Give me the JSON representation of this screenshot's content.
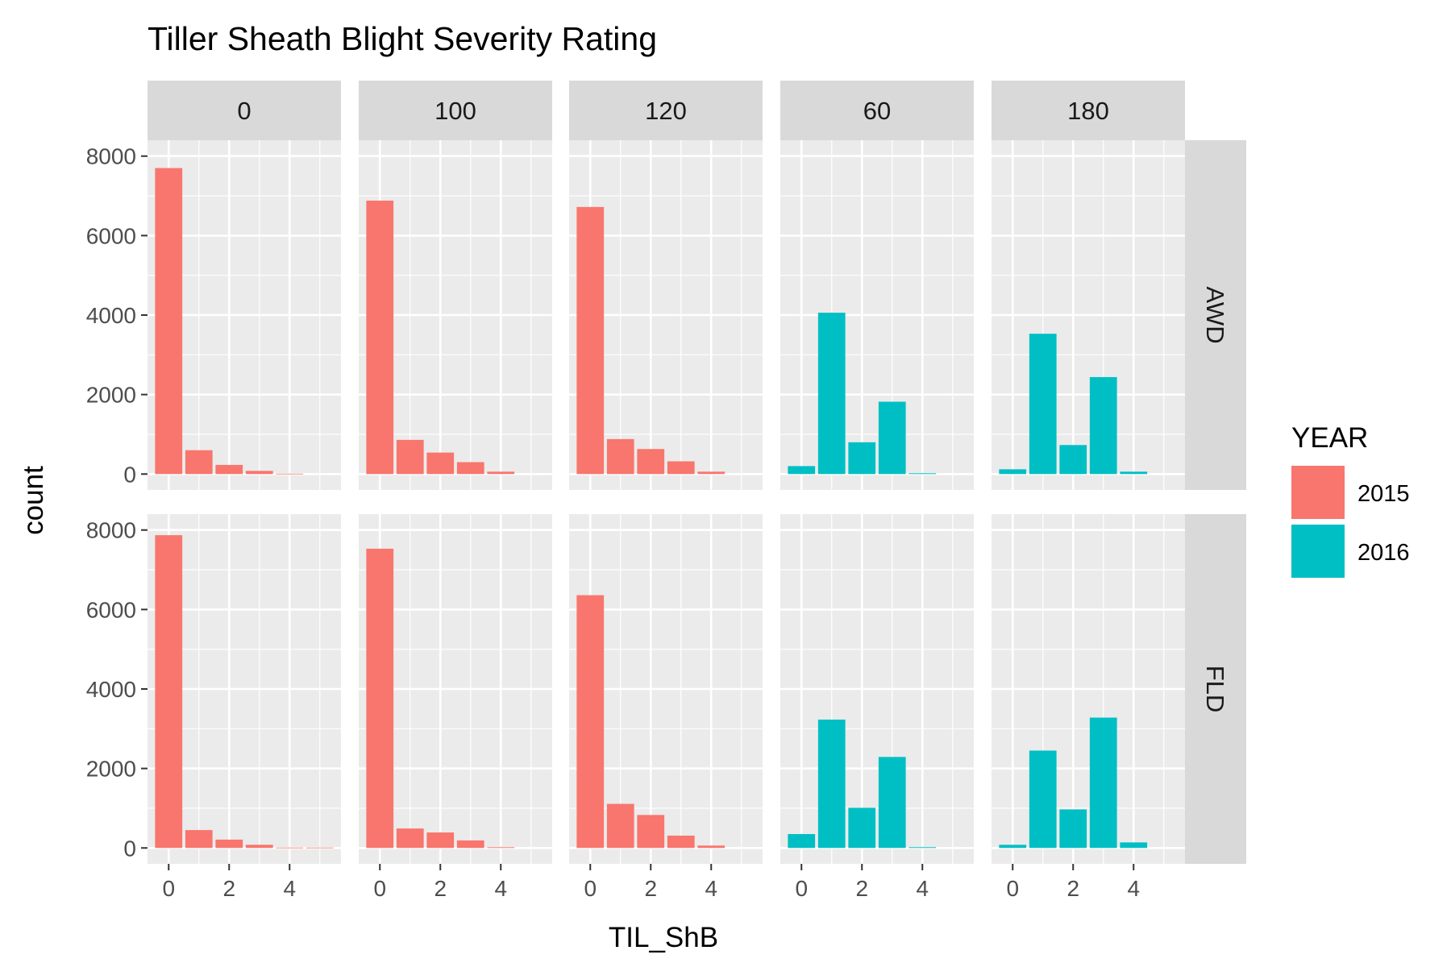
{
  "chart_data": {
    "type": "bar",
    "title": "Tiller Sheath Blight Severity Rating",
    "xlabel": "TIL_ShB",
    "ylabel": "count",
    "x": [
      0,
      1,
      2,
      3,
      4,
      5
    ],
    "xticks": [
      "0",
      "2",
      "4"
    ],
    "yticks": [
      "0",
      "2000",
      "4000",
      "6000",
      "8000"
    ],
    "xlim": [
      -0.7,
      5.7
    ],
    "ylim": [
      -400,
      8400
    ],
    "grid": true,
    "legend": {
      "title": "YEAR",
      "position": "right",
      "entries": [
        {
          "label": "2015",
          "color": "#F8766D"
        },
        {
          "label": "2016",
          "color": "#00BFC4"
        }
      ]
    },
    "col_facets": [
      "0",
      "100",
      "120",
      "60",
      "180"
    ],
    "row_facets": [
      "AWD",
      "FLD"
    ],
    "panels": [
      {
        "row": "AWD",
        "col": "0",
        "year": "2015",
        "values": [
          7700,
          600,
          230,
          80,
          10,
          0
        ]
      },
      {
        "row": "AWD",
        "col": "100",
        "year": "2015",
        "values": [
          6880,
          860,
          540,
          300,
          60,
          0
        ]
      },
      {
        "row": "AWD",
        "col": "120",
        "year": "2015",
        "values": [
          6720,
          880,
          630,
          320,
          60,
          0
        ]
      },
      {
        "row": "AWD",
        "col": "60",
        "year": "2016",
        "values": [
          200,
          4060,
          800,
          1820,
          20,
          0
        ]
      },
      {
        "row": "AWD",
        "col": "180",
        "year": "2016",
        "values": [
          120,
          3530,
          730,
          2440,
          60,
          0
        ]
      },
      {
        "row": "FLD",
        "col": "0",
        "year": "2015",
        "values": [
          7870,
          450,
          210,
          80,
          10,
          10
        ]
      },
      {
        "row": "FLD",
        "col": "100",
        "year": "2015",
        "values": [
          7530,
          490,
          390,
          190,
          20,
          0
        ]
      },
      {
        "row": "FLD",
        "col": "120",
        "year": "2015",
        "values": [
          6360,
          1110,
          830,
          310,
          60,
          0
        ]
      },
      {
        "row": "FLD",
        "col": "60",
        "year": "2016",
        "values": [
          350,
          3230,
          1010,
          2290,
          20,
          0
        ]
      },
      {
        "row": "FLD",
        "col": "180",
        "year": "2016",
        "values": [
          80,
          2450,
          970,
          3280,
          140,
          0
        ]
      }
    ]
  }
}
